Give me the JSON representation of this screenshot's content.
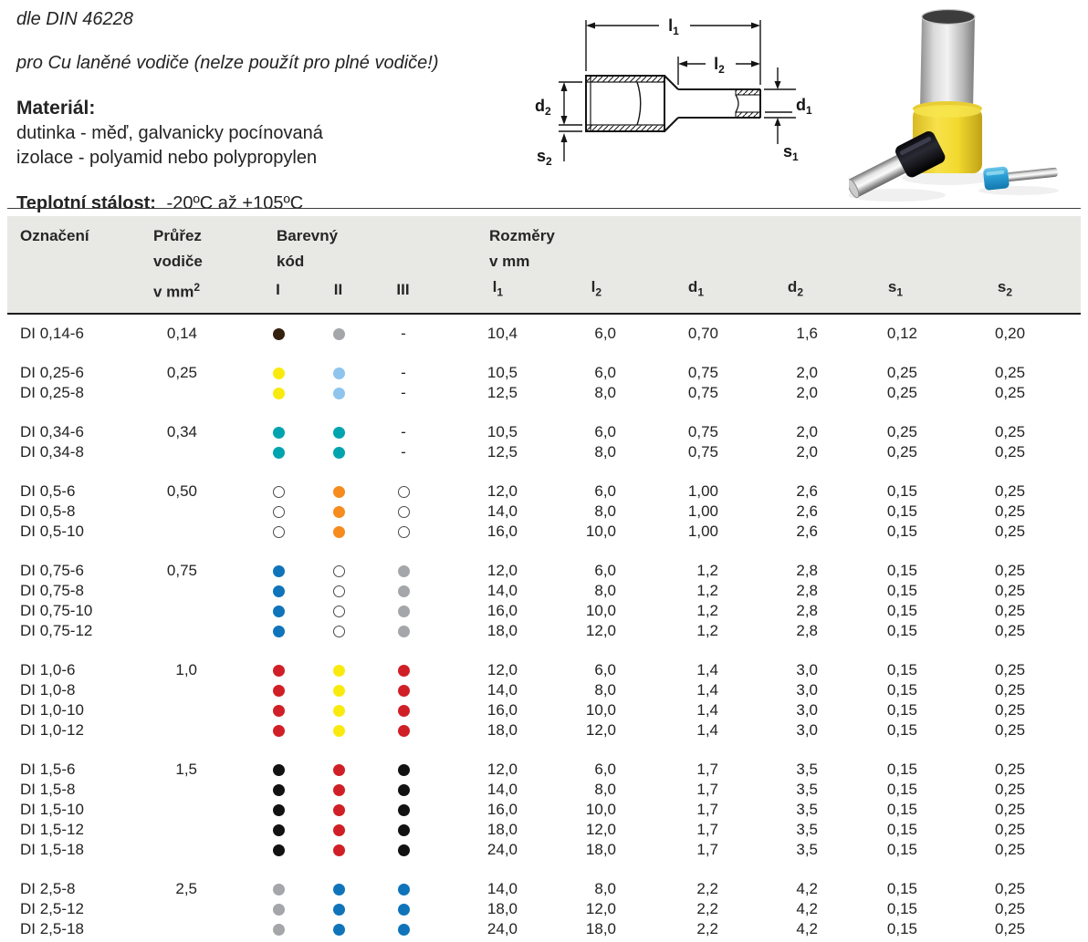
{
  "intro": {
    "din": "dle DIN 46228",
    "cu_note": "pro Cu laněné vodiče (nelze použít pro plné vodiče!)",
    "material_label": "Materiál:",
    "material_line1": "dutinka - měď, galvanicky pocínovaná",
    "material_line2": "izolace - polyamid nebo polypropylen",
    "temp_label": "Teplotní stálost:",
    "temp_value": "-20ºC až +105ºC"
  },
  "diagram": {
    "labels": {
      "l1": {
        "base": "l",
        "sub": "1"
      },
      "l2": {
        "base": "l",
        "sub": "2"
      },
      "d1": {
        "base": "d",
        "sub": "1"
      },
      "d2": {
        "base": "d",
        "sub": "2"
      },
      "s1": {
        "base": "s",
        "sub": "1"
      },
      "s2": {
        "base": "s",
        "sub": "2"
      }
    }
  },
  "table": {
    "dash_symbol": "-",
    "header": {
      "designation": "Označení",
      "cross_lines": [
        "Průřez",
        "vodiče"
      ],
      "cross_unit_base": "v mm",
      "cross_unit_sup": "2",
      "color_lines": [
        "Barevný",
        "kód"
      ],
      "color_cols": [
        "I",
        "II",
        "III"
      ],
      "dims_lines": [
        "Rozměry",
        "v mm"
      ],
      "dims": [
        {
          "base": "l",
          "sub": "1"
        },
        {
          "base": "l",
          "sub": "2"
        },
        {
          "base": "d",
          "sub": "1"
        },
        {
          "base": "d",
          "sub": "2"
        },
        {
          "base": "s",
          "sub": "1"
        },
        {
          "base": "s",
          "sub": "2"
        }
      ]
    },
    "dot_colors": {
      "brown": "#33200f",
      "gray": "#a4a6a9",
      "yellow": "#f9ea0e",
      "lightblue": "#8fc4ec",
      "teal": "#00a4ae",
      "orange": "#f68b1e",
      "blue": "#0f74b9",
      "red": "#d01f26",
      "black": "#121212",
      "white": "#ffffff"
    },
    "groups": [
      {
        "cross": "0,14",
        "rows": [
          {
            "name": "DI 0,14-6",
            "colors": [
              "brown",
              "gray",
              "dash"
            ],
            "dims": [
              "10,4",
              "6,0",
              "0,70",
              "1,6",
              "0,12",
              "0,20"
            ]
          }
        ]
      },
      {
        "cross": "0,25",
        "rows": [
          {
            "name": "DI 0,25-6",
            "colors": [
              "yellow",
              "lightblue",
              "dash"
            ],
            "dims": [
              "10,5",
              "6,0",
              "0,75",
              "2,0",
              "0,25",
              "0,25"
            ]
          },
          {
            "name": "DI 0,25-8",
            "colors": [
              "yellow",
              "lightblue",
              "dash"
            ],
            "dims": [
              "12,5",
              "8,0",
              "0,75",
              "2,0",
              "0,25",
              "0,25"
            ]
          }
        ]
      },
      {
        "cross": "0,34",
        "rows": [
          {
            "name": "DI 0,34-6",
            "colors": [
              "teal",
              "teal",
              "dash"
            ],
            "dims": [
              "10,5",
              "6,0",
              "0,75",
              "2,0",
              "0,25",
              "0,25"
            ]
          },
          {
            "name": "DI 0,34-8",
            "colors": [
              "teal",
              "teal",
              "dash"
            ],
            "dims": [
              "12,5",
              "8,0",
              "0,75",
              "2,0",
              "0,25",
              "0,25"
            ]
          }
        ]
      },
      {
        "cross": "0,50",
        "rows": [
          {
            "name": "DI 0,5-6",
            "colors": [
              "white",
              "orange",
              "white"
            ],
            "dims": [
              "12,0",
              "6,0",
              "1,00",
              "2,6",
              "0,15",
              "0,25"
            ]
          },
          {
            "name": "DI 0,5-8",
            "colors": [
              "white",
              "orange",
              "white"
            ],
            "dims": [
              "14,0",
              "8,0",
              "1,00",
              "2,6",
              "0,15",
              "0,25"
            ]
          },
          {
            "name": "DI 0,5-10",
            "colors": [
              "white",
              "orange",
              "white"
            ],
            "dims": [
              "16,0",
              "10,0",
              "1,00",
              "2,6",
              "0,15",
              "0,25"
            ]
          }
        ]
      },
      {
        "cross": "0,75",
        "rows": [
          {
            "name": "DI 0,75-6",
            "colors": [
              "blue",
              "white",
              "gray"
            ],
            "dims": [
              "12,0",
              "6,0",
              "1,2",
              "2,8",
              "0,15",
              "0,25"
            ]
          },
          {
            "name": "DI 0,75-8",
            "colors": [
              "blue",
              "white",
              "gray"
            ],
            "dims": [
              "14,0",
              "8,0",
              "1,2",
              "2,8",
              "0,15",
              "0,25"
            ]
          },
          {
            "name": "DI 0,75-10",
            "colors": [
              "blue",
              "white",
              "gray"
            ],
            "dims": [
              "16,0",
              "10,0",
              "1,2",
              "2,8",
              "0,15",
              "0,25"
            ]
          },
          {
            "name": "DI 0,75-12",
            "colors": [
              "blue",
              "white",
              "gray"
            ],
            "dims": [
              "18,0",
              "12,0",
              "1,2",
              "2,8",
              "0,15",
              "0,25"
            ]
          }
        ]
      },
      {
        "cross": "1,0",
        "rows": [
          {
            "name": "DI 1,0-6",
            "colors": [
              "red",
              "yellow",
              "red"
            ],
            "dims": [
              "12,0",
              "6,0",
              "1,4",
              "3,0",
              "0,15",
              "0,25"
            ]
          },
          {
            "name": "DI 1,0-8",
            "colors": [
              "red",
              "yellow",
              "red"
            ],
            "dims": [
              "14,0",
              "8,0",
              "1,4",
              "3,0",
              "0,15",
              "0,25"
            ]
          },
          {
            "name": "DI 1,0-10",
            "colors": [
              "red",
              "yellow",
              "red"
            ],
            "dims": [
              "16,0",
              "10,0",
              "1,4",
              "3,0",
              "0,15",
              "0,25"
            ]
          },
          {
            "name": "DI 1,0-12",
            "colors": [
              "red",
              "yellow",
              "red"
            ],
            "dims": [
              "18,0",
              "12,0",
              "1,4",
              "3,0",
              "0,15",
              "0,25"
            ]
          }
        ]
      },
      {
        "cross": "1,5",
        "rows": [
          {
            "name": "DI 1,5-6",
            "colors": [
              "black",
              "red",
              "black"
            ],
            "dims": [
              "12,0",
              "6,0",
              "1,7",
              "3,5",
              "0,15",
              "0,25"
            ]
          },
          {
            "name": "DI 1,5-8",
            "colors": [
              "black",
              "red",
              "black"
            ],
            "dims": [
              "14,0",
              "8,0",
              "1,7",
              "3,5",
              "0,15",
              "0,25"
            ]
          },
          {
            "name": "DI 1,5-10",
            "colors": [
              "black",
              "red",
              "black"
            ],
            "dims": [
              "16,0",
              "10,0",
              "1,7",
              "3,5",
              "0,15",
              "0,25"
            ]
          },
          {
            "name": "DI 1,5-12",
            "colors": [
              "black",
              "red",
              "black"
            ],
            "dims": [
              "18,0",
              "12,0",
              "1,7",
              "3,5",
              "0,15",
              "0,25"
            ]
          },
          {
            "name": "DI 1,5-18",
            "colors": [
              "black",
              "red",
              "black"
            ],
            "dims": [
              "24,0",
              "18,0",
              "1,7",
              "3,5",
              "0,15",
              "0,25"
            ]
          }
        ]
      },
      {
        "cross": "2,5",
        "rows": [
          {
            "name": "DI 2,5-8",
            "colors": [
              "gray",
              "blue",
              "blue"
            ],
            "dims": [
              "14,0",
              "8,0",
              "2,2",
              "4,2",
              "0,15",
              "0,25"
            ]
          },
          {
            "name": "DI 2,5-12",
            "colors": [
              "gray",
              "blue",
              "blue"
            ],
            "dims": [
              "18,0",
              "12,0",
              "2,2",
              "4,2",
              "0,15",
              "0,25"
            ]
          },
          {
            "name": "DI 2,5-18",
            "colors": [
              "gray",
              "blue",
              "blue"
            ],
            "dims": [
              "24,0",
              "18,0",
              "2,2",
              "4,2",
              "0,15",
              "0,25"
            ]
          }
        ]
      }
    ]
  }
}
